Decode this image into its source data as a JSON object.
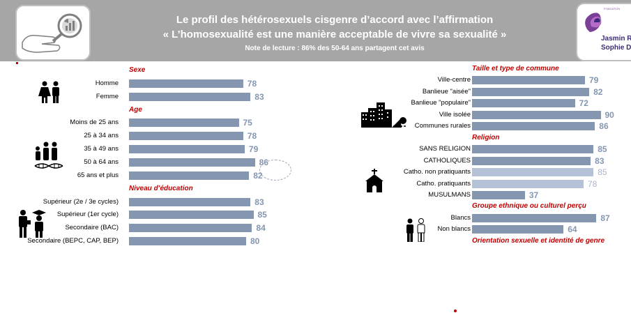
{
  "header": {
    "title_line1": "Le profil des hétérosexuels cisgenre d’accord avec l’affirmation",
    "title_line2": "« L’homosexualité est une manière acceptable de vivre sa sexualité »",
    "note": "Note de lecture : 86% des 50-64 ans partagent cet avis",
    "logo_small": "FONDATION",
    "logo_name1": "Jasmin Ro",
    "logo_name2": "Sophie De"
  },
  "colors": {
    "bar": "#8496b0",
    "bar_light": "#b4c1d6",
    "section": "#c00000",
    "banner": "#a6a6a6"
  },
  "icons": {
    "left_logo": "magnifier-chart-icon",
    "sexe": "man-woman-icon",
    "age": "family-dna-icon",
    "education": "graduate-worker-icon",
    "commune": "city-buildings-icon",
    "religion": "church-icon",
    "ethnic": "people-icon"
  },
  "chart_data": {
    "type": "bar",
    "orientation": "horizontal",
    "xlim": [
      0,
      100
    ],
    "highlighted": "50 à 64 ans",
    "groups": [
      {
        "title": "Sexe",
        "categories": [
          "Homme",
          "Femme"
        ],
        "values": [
          78,
          83
        ]
      },
      {
        "title": "Age",
        "categories": [
          "Moins de 25 ans",
          "25 à 34 ans",
          "35 à 49 ans",
          "50 à 64 ans",
          "65 ans et plus"
        ],
        "values": [
          75,
          78,
          79,
          86,
          82
        ]
      },
      {
        "title": "Niveau d’éducation",
        "categories": [
          "Supérieur (2e / 3e cycles)",
          "Supérieur (1er cycle)",
          "Secondaire (BAC)",
          "Secondaire (BEPC, CAP, BEP)"
        ],
        "values": [
          83,
          85,
          84,
          80
        ]
      },
      {
        "title": "Taille et type de commune",
        "categories": [
          "Ville-centre",
          "Banlieue \"aisée\"",
          "Banlieue \"populaire\"",
          "Ville isolée",
          "Communes rurales"
        ],
        "values": [
          79,
          82,
          72,
          90,
          86
        ]
      },
      {
        "title": "Religion",
        "categories": [
          "SANS RELIGION",
          "CATHOLIQUES",
          "Catho. non pratiquants",
          "Catho. pratiquants",
          "MUSULMANS"
        ],
        "values": [
          85,
          83,
          85,
          78,
          37
        ],
        "light": [
          "Catho. non pratiquants",
          "Catho. pratiquants"
        ]
      },
      {
        "title": "Groupe ethnique ou culturel perçu",
        "categories": [
          "Blancs",
          "Non blancs"
        ],
        "values": [
          87,
          64
        ]
      },
      {
        "title": "Orientation sexuelle et identité de genre",
        "categories": [],
        "values": []
      }
    ]
  }
}
